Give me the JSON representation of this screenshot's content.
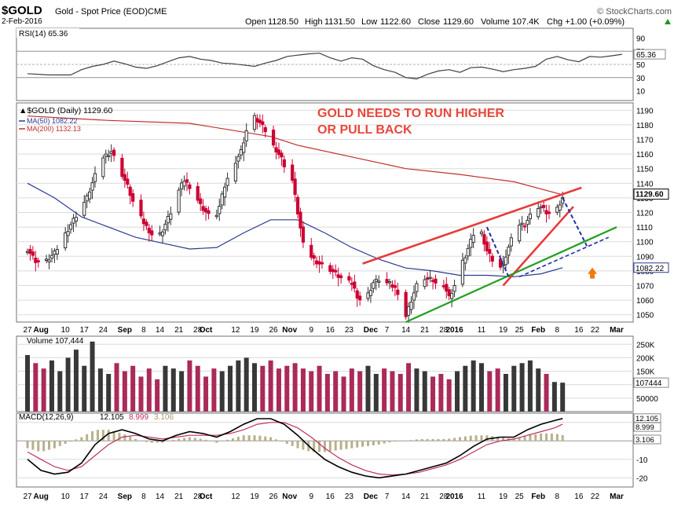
{
  "header": {
    "symbol": "$GOLD",
    "name": "Gold - Spot Price (EOD)",
    "exchange": "CME",
    "date": "2-Feb-2016",
    "brand": "© StockCharts.com",
    "open_label": "Open",
    "open": "1128.50",
    "high_label": "High",
    "high": "1131.50",
    "low_label": "Low",
    "low": "1122.60",
    "close_label": "Close",
    "close": "1129.60",
    "volume": "Volume 107.4K",
    "change": "Chg +1.00 (+0.09%)",
    "change_icon": "up-triangle-icon"
  },
  "annotation": {
    "line1": "GOLD NEEDS TO RUN HIGHER",
    "line2": "OR PULL BACK",
    "color": "#e8473b"
  },
  "colors": {
    "up": "#303030",
    "down": "#cc0033",
    "ma50": "#2a3a90",
    "ma200": "#c0302b",
    "vol_up": "#383838",
    "vol_down": "#aa2a5a",
    "macd_line": "#000000",
    "signal_line": "#c03060",
    "histogram": "#b8b08a",
    "rsi_line": "#404040",
    "trend_red": "#e83a3a",
    "trend_green": "#1ea01e",
    "projection": "#1f2fa8",
    "arrow": "#f07a10",
    "panel_border": "#707070",
    "grid": "#dadada"
  },
  "legend": {
    "price": "▲$GOLD (Daily) 1129.60",
    "ma50": "MA(50) 1082.22",
    "ma200": "MA(200) 1132.13"
  },
  "x_axis_labels": [
    "27",
    "Aug",
    "10",
    "17",
    "24",
    "Sep",
    "8",
    "14",
    "21",
    "28",
    "Oct",
    "12",
    "19",
    "26",
    "Nov",
    "9",
    "16",
    "23",
    "Dec",
    "7",
    "14",
    "21",
    "28",
    "2016",
    "11",
    "19",
    "25",
    "Feb",
    "8",
    "16",
    "22",
    "Mar"
  ],
  "bold_x_labels": [
    "Aug",
    "Sep",
    "Oct",
    "Nov",
    "Dec",
    "2016",
    "Feb",
    "Mar"
  ],
  "rsi": {
    "label": "RSI(14) 65.36",
    "value": 65.36,
    "ticks": [
      "90",
      "70",
      "50",
      "30",
      "10"
    ],
    "levels": [
      70,
      30
    ],
    "points": [
      [
        0,
        36
      ],
      [
        8,
        34
      ],
      [
        16,
        34
      ],
      [
        20,
        42
      ],
      [
        24,
        47
      ],
      [
        28,
        50
      ],
      [
        32,
        55
      ],
      [
        36,
        51
      ],
      [
        40,
        46
      ],
      [
        44,
        44
      ],
      [
        48,
        48
      ],
      [
        52,
        54
      ],
      [
        56,
        60
      ],
      [
        60,
        62
      ],
      [
        64,
        58
      ],
      [
        68,
        56
      ],
      [
        72,
        52
      ],
      [
        76,
        51
      ],
      [
        80,
        49
      ],
      [
        84,
        47
      ],
      [
        88,
        52
      ],
      [
        92,
        56
      ],
      [
        96,
        62
      ],
      [
        100,
        64
      ],
      [
        104,
        66
      ],
      [
        108,
        67
      ],
      [
        112,
        60
      ],
      [
        116,
        55
      ],
      [
        120,
        60
      ],
      [
        124,
        58
      ],
      [
        128,
        48
      ],
      [
        132,
        42
      ],
      [
        136,
        38
      ],
      [
        140,
        30
      ],
      [
        144,
        28
      ],
      [
        148,
        35
      ],
      [
        152,
        40
      ],
      [
        156,
        42
      ],
      [
        160,
        38
      ],
      [
        164,
        45
      ],
      [
        168,
        46
      ],
      [
        172,
        43
      ],
      [
        176,
        39
      ],
      [
        180,
        42
      ],
      [
        184,
        44
      ],
      [
        188,
        47
      ],
      [
        192,
        58
      ],
      [
        196,
        62
      ],
      [
        200,
        57
      ],
      [
        204,
        54
      ],
      [
        208,
        62
      ],
      [
        212,
        61
      ],
      [
        216,
        63
      ],
      [
        220,
        65.36
      ]
    ]
  },
  "chart_data": {
    "type": "candlestick",
    "title": "$GOLD (Daily) 1129.60",
    "x_start": "2015-07-27",
    "x_end": "2016-02-02",
    "y_ticks": [
      "1190",
      "1180",
      "1170",
      "1160",
      "1150",
      "1140",
      "1130",
      "1120",
      "1110",
      "1100",
      "1090",
      "1080",
      "1070",
      "1060",
      "1050"
    ],
    "price_key_close": [
      [
        0,
        1095
      ],
      [
        3,
        1087
      ],
      [
        6,
        1085
      ],
      [
        10,
        1092
      ],
      [
        13,
        1102
      ],
      [
        16,
        1112
      ],
      [
        18,
        1118
      ],
      [
        20,
        1124
      ],
      [
        22,
        1130
      ],
      [
        25,
        1145
      ],
      [
        28,
        1158
      ],
      [
        31,
        1162
      ],
      [
        34,
        1150
      ],
      [
        37,
        1138
      ],
      [
        40,
        1122
      ],
      [
        43,
        1113
      ],
      [
        46,
        1105
      ],
      [
        48,
        1102
      ],
      [
        50,
        1108
      ],
      [
        53,
        1120
      ],
      [
        56,
        1135
      ],
      [
        58,
        1142
      ],
      [
        61,
        1136
      ],
      [
        64,
        1125
      ],
      [
        67,
        1118
      ],
      [
        69,
        1114
      ],
      [
        71,
        1124
      ],
      [
        73,
        1138
      ],
      [
        76,
        1152
      ],
      [
        79,
        1162
      ],
      [
        82,
        1183
      ],
      [
        84,
        1185
      ],
      [
        86,
        1181
      ],
      [
        88,
        1176
      ],
      [
        90,
        1168
      ],
      [
        92,
        1163
      ],
      [
        94,
        1157
      ],
      [
        96,
        1148
      ],
      [
        98,
        1142
      ],
      [
        100,
        1120
      ],
      [
        102,
        1098
      ],
      [
        104,
        1092
      ],
      [
        106,
        1088
      ],
      [
        108,
        1085
      ],
      [
        110,
        1084
      ],
      [
        112,
        1081
      ],
      [
        114,
        1078
      ],
      [
        116,
        1075
      ],
      [
        118,
        1072
      ],
      [
        120,
        1072
      ],
      [
        122,
        1063
      ],
      [
        124,
        1058
      ],
      [
        126,
        1064
      ],
      [
        128,
        1072
      ],
      [
        130,
        1074
      ],
      [
        132,
        1072
      ],
      [
        134,
        1071
      ],
      [
        136,
        1068
      ],
      [
        138,
        1063
      ],
      [
        140,
        1049
      ],
      [
        142,
        1060
      ],
      [
        144,
        1070
      ],
      [
        146,
        1076
      ],
      [
        148,
        1074
      ],
      [
        150,
        1074
      ],
      [
        152,
        1068
      ],
      [
        154,
        1071
      ],
      [
        156,
        1062
      ],
      [
        158,
        1070
      ],
      [
        160,
        1082
      ],
      [
        162,
        1090
      ],
      [
        164,
        1100
      ],
      [
        166,
        1110
      ],
      [
        168,
        1106
      ],
      [
        170,
        1094
      ],
      [
        172,
        1088
      ],
      [
        174,
        1080
      ],
      [
        176,
        1085
      ],
      [
        178,
        1096
      ],
      [
        180,
        1106
      ],
      [
        182,
        1112
      ],
      [
        184,
        1112
      ],
      [
        186,
        1118
      ],
      [
        188,
        1124
      ],
      [
        190,
        1124
      ],
      [
        192,
        1120
      ],
      [
        194,
        1118
      ],
      [
        196,
        1122
      ],
      [
        198,
        1129.6
      ]
    ],
    "ma50_points": [
      [
        0,
        1140
      ],
      [
        10,
        1130
      ],
      [
        20,
        1117
      ],
      [
        30,
        1110
      ],
      [
        40,
        1103
      ],
      [
        50,
        1099
      ],
      [
        60,
        1095
      ],
      [
        70,
        1096
      ],
      [
        80,
        1106
      ],
      [
        90,
        1115
      ],
      [
        100,
        1115
      ],
      [
        110,
        1106
      ],
      [
        120,
        1096
      ],
      [
        130,
        1088
      ],
      [
        140,
        1082
      ],
      [
        150,
        1080
      ],
      [
        160,
        1077
      ],
      [
        170,
        1077
      ],
      [
        180,
        1076
      ],
      [
        190,
        1078
      ],
      [
        198,
        1082.22
      ]
    ],
    "ma200_points": [
      [
        0,
        1186
      ],
      [
        30,
        1183
      ],
      [
        60,
        1181
      ],
      [
        90,
        1172
      ],
      [
        100,
        1166
      ],
      [
        120,
        1158
      ],
      [
        140,
        1150
      ],
      [
        160,
        1146
      ],
      [
        180,
        1141
      ],
      [
        198,
        1132.13
      ]
    ],
    "volume": {
      "label": "Volume 107,444",
      "value": 107444,
      "ticks": [
        "250K",
        "200K",
        "150K",
        "100K",
        "50000"
      ],
      "bars": [
        [
          0,
          210000
        ],
        [
          3,
          180000
        ],
        [
          6,
          160000
        ],
        [
          9,
          190000
        ],
        [
          12,
          150000
        ],
        [
          15,
          200000
        ],
        [
          18,
          230000
        ],
        [
          21,
          170000
        ],
        [
          24,
          260000
        ],
        [
          27,
          160000
        ],
        [
          30,
          140000
        ],
        [
          33,
          180000
        ],
        [
          36,
          150000
        ],
        [
          39,
          170000
        ],
        [
          42,
          130000
        ],
        [
          45,
          160000
        ],
        [
          48,
          120000
        ],
        [
          51,
          170000
        ],
        [
          54,
          160000
        ],
        [
          57,
          150000
        ],
        [
          60,
          190000
        ],
        [
          63,
          170000
        ],
        [
          66,
          130000
        ],
        [
          69,
          160000
        ],
        [
          72,
          150000
        ],
        [
          75,
          170000
        ],
        [
          78,
          190000
        ],
        [
          81,
          200000
        ],
        [
          84,
          180000
        ],
        [
          87,
          170000
        ],
        [
          90,
          190000
        ],
        [
          93,
          160000
        ],
        [
          96,
          170000
        ],
        [
          99,
          180000
        ],
        [
          102,
          160000
        ],
        [
          105,
          150000
        ],
        [
          108,
          170000
        ],
        [
          111,
          140000
        ],
        [
          114,
          150000
        ],
        [
          117,
          130000
        ],
        [
          120,
          160000
        ],
        [
          123,
          150000
        ],
        [
          126,
          170000
        ],
        [
          129,
          140000
        ],
        [
          132,
          160000
        ],
        [
          135,
          150000
        ],
        [
          138,
          140000
        ],
        [
          141,
          180000
        ],
        [
          144,
          160000
        ],
        [
          147,
          150000
        ],
        [
          150,
          130000
        ],
        [
          153,
          140000
        ],
        [
          156,
          120000
        ],
        [
          159,
          150000
        ],
        [
          162,
          170000
        ],
        [
          165,
          190000
        ],
        [
          168,
          180000
        ],
        [
          171,
          150000
        ],
        [
          174,
          160000
        ],
        [
          177,
          140000
        ],
        [
          180,
          170000
        ],
        [
          183,
          180000
        ],
        [
          186,
          190000
        ],
        [
          189,
          160000
        ],
        [
          192,
          140000
        ],
        [
          195,
          110000
        ],
        [
          198,
          107444
        ]
      ]
    },
    "macd": {
      "label": "MACD(12,26,9)",
      "macd_value": "12.105",
      "signal_value": "8.999",
      "hist_value": "3.106",
      "ticks": [
        "10",
        "0",
        "-10",
        "-20"
      ],
      "macd_points": [
        [
          0,
          -10
        ],
        [
          5,
          -16
        ],
        [
          10,
          -18
        ],
        [
          15,
          -17
        ],
        [
          20,
          -12
        ],
        [
          25,
          -2
        ],
        [
          30,
          4
        ],
        [
          35,
          6
        ],
        [
          40,
          4
        ],
        [
          45,
          1
        ],
        [
          50,
          0
        ],
        [
          55,
          3
        ],
        [
          60,
          5
        ],
        [
          65,
          4
        ],
        [
          70,
          2
        ],
        [
          75,
          5
        ],
        [
          80,
          9
        ],
        [
          85,
          12
        ],
        [
          90,
          12
        ],
        [
          95,
          9
        ],
        [
          100,
          3
        ],
        [
          105,
          -4
        ],
        [
          110,
          -10
        ],
        [
          115,
          -14
        ],
        [
          120,
          -17
        ],
        [
          125,
          -19
        ],
        [
          130,
          -20
        ],
        [
          135,
          -19
        ],
        [
          140,
          -18
        ],
        [
          145,
          -16
        ],
        [
          150,
          -14
        ],
        [
          155,
          -12
        ],
        [
          160,
          -8
        ],
        [
          165,
          -3
        ],
        [
          170,
          1
        ],
        [
          175,
          2
        ],
        [
          180,
          2
        ],
        [
          185,
          6
        ],
        [
          190,
          9
        ],
        [
          195,
          11
        ],
        [
          198,
          12.105
        ]
      ],
      "signal_points": [
        [
          0,
          -6
        ],
        [
          5,
          -10
        ],
        [
          10,
          -14
        ],
        [
          15,
          -16
        ],
        [
          20,
          -14
        ],
        [
          25,
          -8
        ],
        [
          30,
          -2
        ],
        [
          35,
          2
        ],
        [
          40,
          3
        ],
        [
          45,
          2
        ],
        [
          50,
          1
        ],
        [
          55,
          2
        ],
        [
          60,
          3
        ],
        [
          65,
          3
        ],
        [
          70,
          3
        ],
        [
          75,
          4
        ],
        [
          80,
          6
        ],
        [
          85,
          9
        ],
        [
          90,
          10
        ],
        [
          95,
          10
        ],
        [
          100,
          7
        ],
        [
          105,
          2
        ],
        [
          110,
          -4
        ],
        [
          115,
          -9
        ],
        [
          120,
          -13
        ],
        [
          125,
          -16
        ],
        [
          130,
          -18
        ],
        [
          135,
          -18.5
        ],
        [
          140,
          -18
        ],
        [
          145,
          -17
        ],
        [
          150,
          -15
        ],
        [
          155,
          -13
        ],
        [
          160,
          -10
        ],
        [
          165,
          -6
        ],
        [
          170,
          -2
        ],
        [
          175,
          0
        ],
        [
          180,
          1
        ],
        [
          185,
          3
        ],
        [
          190,
          5
        ],
        [
          195,
          7
        ],
        [
          198,
          8.999
        ]
      ]
    },
    "axis_ranges": {
      "price": [
        1045,
        1195
      ],
      "rsi": [
        0,
        100
      ],
      "volume": [
        0,
        280000
      ],
      "macd": [
        -25,
        15
      ]
    }
  }
}
